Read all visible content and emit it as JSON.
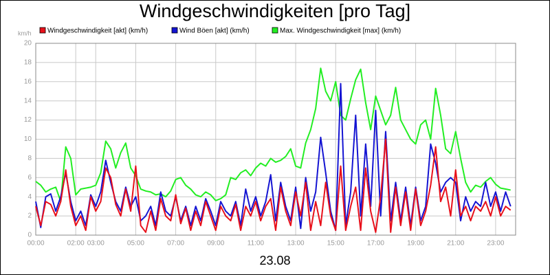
{
  "chart_data": {
    "type": "line",
    "title": "Windgeschwindigkeiten [pro Tag]",
    "y_label": "km/h",
    "x_label": "23.08",
    "x": [
      0,
      0.25,
      0.5,
      0.75,
      1,
      1.25,
      1.5,
      1.75,
      2,
      2.25,
      2.5,
      2.75,
      3,
      3.25,
      3.5,
      3.75,
      4,
      4.25,
      4.5,
      4.75,
      5,
      5.25,
      5.5,
      5.75,
      6,
      6.25,
      6.5,
      6.75,
      7,
      7.25,
      7.5,
      7.75,
      8,
      8.25,
      8.5,
      8.75,
      9,
      9.25,
      9.5,
      9.75,
      10,
      10.25,
      10.5,
      10.75,
      11,
      11.25,
      11.5,
      11.75,
      12,
      12.25,
      12.5,
      12.75,
      13,
      13.25,
      13.5,
      13.75,
      14,
      14.25,
      14.5,
      14.75,
      15,
      15.25,
      15.5,
      15.75,
      16,
      16.25,
      16.5,
      16.75,
      17,
      17.25,
      17.5,
      17.75,
      18,
      18.25,
      18.5,
      18.75,
      19,
      19.25,
      19.5,
      19.75,
      20,
      20.25,
      20.5,
      20.75,
      21,
      21.25,
      21.5,
      21.75,
      22,
      22.25,
      22.5,
      22.75,
      23,
      23.25,
      23.5,
      23.75
    ],
    "series": [
      {
        "name": "Windgeschwindigkeit [akt] (km/h)",
        "color": "#e8101a",
        "values": [
          3.0,
          1.0,
          3.5,
          3.2,
          2.0,
          3.5,
          6.8,
          3.0,
          1.0,
          2.0,
          0.5,
          4.0,
          2.5,
          3.5,
          7.0,
          6.0,
          3.2,
          2.0,
          4.8,
          2.5,
          7.2,
          1.0,
          0.3,
          2.5,
          0.5,
          3.8,
          2.0,
          1.5,
          4.2,
          1.2,
          2.8,
          0.5,
          2.5,
          1.0,
          3.5,
          2.0,
          0.5,
          3.0,
          2.0,
          1.5,
          3.2,
          0.5,
          3.0,
          2.0,
          3.5,
          1.5,
          3.0,
          3.8,
          0.5,
          5.0,
          2.5,
          1.0,
          4.5,
          2.0,
          5.5,
          0.5,
          3.5,
          1.0,
          5.5,
          2.0,
          0.5,
          7.2,
          0.5,
          3.0,
          5.0,
          0.5,
          7.0,
          2.5,
          0.3,
          4.0,
          10.0,
          0.3,
          5.0,
          1.0,
          4.5,
          0.5,
          4.8,
          1.0,
          2.5,
          5.2,
          9.2,
          3.5,
          5.0,
          2.0,
          6.8,
          2.0,
          3.0,
          1.5,
          3.0,
          2.5,
          3.5,
          2.0,
          4.0,
          2.0,
          3.0,
          2.6
        ]
      },
      {
        "name": "Wind Böen [akt] (km/h)",
        "color": "#1414d2",
        "values": [
          3.5,
          0.8,
          4.0,
          4.3,
          2.5,
          4.0,
          6.5,
          3.5,
          1.5,
          2.5,
          1.0,
          4.2,
          3.0,
          4.5,
          7.8,
          5.5,
          3.5,
          2.5,
          5.0,
          3.0,
          4.0,
          1.5,
          2.0,
          3.0,
          1.0,
          4.5,
          2.5,
          2.0,
          4.0,
          1.5,
          3.0,
          1.0,
          3.0,
          1.5,
          3.8,
          2.5,
          1.0,
          3.5,
          2.5,
          2.0,
          3.5,
          1.0,
          4.8,
          2.5,
          4.0,
          2.0,
          3.5,
          6.3,
          1.5,
          5.5,
          3.0,
          1.5,
          5.0,
          0.7,
          6.0,
          2.5,
          4.5,
          10.2,
          6.5,
          2.5,
          0.5,
          15.8,
          1.0,
          4.5,
          12.5,
          2.0,
          9.5,
          3.0,
          13.0,
          2.0,
          10.8,
          1.5,
          5.5,
          1.5,
          5.0,
          1.0,
          5.0,
          1.5,
          3.0,
          9.5,
          7.5,
          4.5,
          5.5,
          6.0,
          5.5,
          1.5,
          4.0,
          2.5,
          3.5,
          3.0,
          5.5,
          3.0,
          4.5,
          2.5,
          4.5,
          3.0
        ]
      },
      {
        "name": "Max. Windgeschwindigkeit [max] (km/h)",
        "color": "#22ee22",
        "values": [
          5.6,
          5.2,
          4.5,
          4.8,
          5.0,
          3.5,
          9.2,
          8.0,
          4.2,
          4.8,
          4.9,
          5.0,
          5.2,
          6.5,
          9.8,
          9.0,
          7.0,
          8.6,
          9.6,
          7.0,
          6.2,
          4.8,
          4.6,
          4.5,
          4.2,
          4.3,
          4.0,
          4.6,
          5.8,
          6.0,
          5.2,
          4.8,
          4.2,
          4.0,
          4.5,
          4.2,
          3.6,
          3.8,
          4.2,
          6.0,
          5.8,
          6.5,
          6.8,
          6.2,
          7.0,
          7.5,
          7.2,
          8.0,
          7.6,
          7.8,
          8.2,
          9.0,
          7.2,
          7.0,
          9.6,
          11.0,
          13.2,
          17.4,
          15.0,
          14.0,
          16.0,
          12.5,
          12.0,
          14.2,
          16.2,
          17.3,
          13.8,
          11.0,
          14.5,
          13.0,
          11.5,
          12.5,
          15.4,
          12.0,
          11.0,
          10.0,
          9.5,
          11.5,
          12.0,
          10.0,
          15.3,
          12.5,
          9.0,
          8.5,
          10.8,
          8.0,
          5.5,
          4.5,
          5.2,
          5.0,
          5.6,
          6.0,
          5.3,
          4.9,
          4.8,
          4.7
        ]
      }
    ],
    "xlim": [
      0,
      24
    ],
    "xticks": [
      {
        "value": 0,
        "label": "00:00"
      },
      {
        "value": 2,
        "label": "02:00"
      },
      {
        "value": 3,
        "label": "03:00"
      },
      {
        "value": 5,
        "label": "05:00"
      },
      {
        "value": 7,
        "label": "07:00"
      },
      {
        "value": 9,
        "label": "09:00"
      },
      {
        "value": 11,
        "label": "11:00"
      },
      {
        "value": 13,
        "label": "13:00"
      },
      {
        "value": 15,
        "label": "15:00"
      },
      {
        "value": 17,
        "label": "17:00"
      },
      {
        "value": 19,
        "label": "19:00"
      },
      {
        "value": 21,
        "label": "21:00"
      },
      {
        "value": 23,
        "label": "23:00"
      }
    ],
    "ylim": [
      0,
      20
    ],
    "yticks": [
      0,
      2,
      4,
      6,
      8,
      10,
      12,
      14,
      16,
      18,
      20
    ],
    "grid": true
  }
}
